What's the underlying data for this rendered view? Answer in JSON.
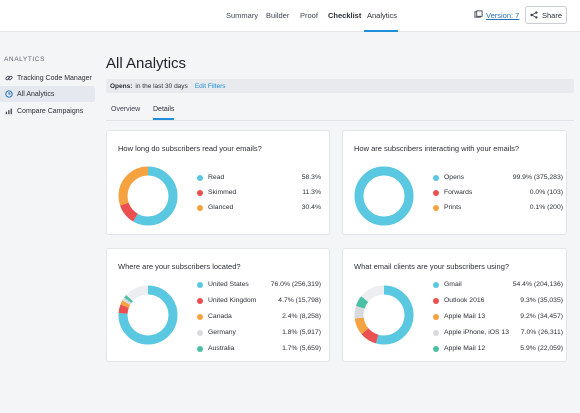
{
  "nav": {
    "tabs": [
      {
        "label": "Summary"
      },
      {
        "label": "Builder"
      },
      {
        "label": "Proof"
      },
      {
        "label": "Checklist"
      },
      {
        "label": "Analytics"
      }
    ],
    "version_label": "Version: 7",
    "share_label": "Share"
  },
  "sidebar": {
    "heading": "ANALYTICS",
    "items": [
      {
        "label": "Tracking Code Manager",
        "icon": "link-icon"
      },
      {
        "label": "All Analytics",
        "icon": "clock-icon"
      },
      {
        "label": "Compare Campaigns",
        "icon": "bar-chart-icon"
      }
    ]
  },
  "page": {
    "title": "All Analytics",
    "filter_label": "Opens:",
    "filter_value": "in the last 30 days",
    "edit_filters": "Edit Filters",
    "subtabs": [
      {
        "label": "Overview"
      },
      {
        "label": "Details"
      }
    ]
  },
  "colors": {
    "blue": "#5ac8e0",
    "red": "#ec4f4f",
    "orange": "#f5a341",
    "gray": "#d8dadd",
    "green": "#4cc0a5",
    "accent": "#1e8fd8"
  },
  "cards": [
    {
      "title": "How long do subscribers read your emails?",
      "rows": [
        {
          "label": "Read",
          "value": "58.3%",
          "pct": 58.3,
          "color": "#5ac8e0"
        },
        {
          "label": "Skimmed",
          "value": "11.3%",
          "pct": 11.3,
          "color": "#ec4f4f"
        },
        {
          "label": "Glanced",
          "value": "30.4%",
          "pct": 30.4,
          "color": "#f5a341"
        }
      ]
    },
    {
      "title": "How are subscribers interacting with your emails?",
      "rows": [
        {
          "label": "Opens",
          "value": "99.9% (375,283)",
          "pct": 99.9,
          "color": "#5ac8e0"
        },
        {
          "label": "Forwards",
          "value": "0.0% (103)",
          "pct": 0.03,
          "color": "#ec4f4f"
        },
        {
          "label": "Prints",
          "value": "0.1% (200)",
          "pct": 0.05,
          "color": "#f5a341"
        }
      ]
    },
    {
      "title": "Where are your subscribers located?",
      "rows": [
        {
          "label": "United States",
          "value": "76.0% (256,319)",
          "pct": 76.0,
          "color": "#5ac8e0"
        },
        {
          "label": "United Kingdom",
          "value": "4.7% (15,798)",
          "pct": 4.7,
          "color": "#ec4f4f"
        },
        {
          "label": "Canada",
          "value": "2.4% (8,258)",
          "pct": 2.4,
          "color": "#f5a341"
        },
        {
          "label": "Germany",
          "value": "1.8% (5,917)",
          "pct": 1.8,
          "color": "#d8dadd"
        },
        {
          "label": "Australia",
          "value": "1.7% (5,659)",
          "pct": 1.7,
          "color": "#4cc0a5"
        }
      ]
    },
    {
      "title": "What email clients are your subscribers using?",
      "rows": [
        {
          "label": "Gmail",
          "value": "54.4% (204,136)",
          "pct": 54.4,
          "color": "#5ac8e0"
        },
        {
          "label": "Outlook 2016",
          "value": "9.3% (35,035)",
          "pct": 9.3,
          "color": "#ec4f4f"
        },
        {
          "label": "Apple Mail 13",
          "value": "9.2% (34,457)",
          "pct": 9.2,
          "color": "#f5a341"
        },
        {
          "label": "Apple iPhone, iOS 13",
          "value": "7.0% (26,311)",
          "pct": 7.0,
          "color": "#d8dadd"
        },
        {
          "label": "Apple Mail 12",
          "value": "5.9% (22,059)",
          "pct": 5.9,
          "color": "#4cc0a5"
        }
      ]
    }
  ]
}
